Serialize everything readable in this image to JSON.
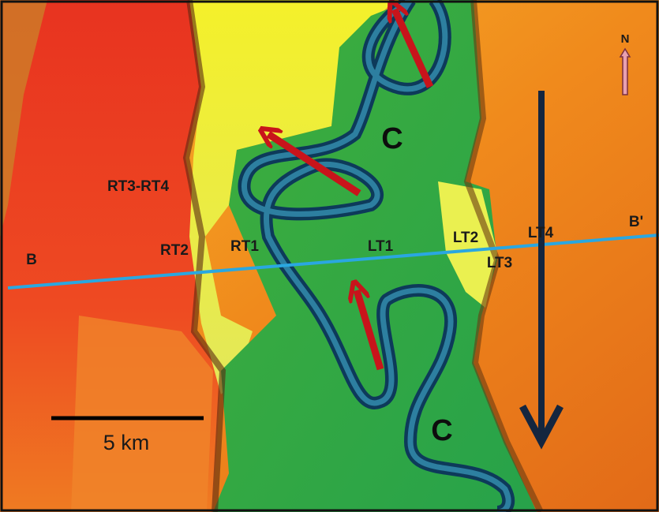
{
  "map": {
    "north": "N",
    "section": {
      "start": "B",
      "end": "B'"
    },
    "channels": [
      "C",
      "C"
    ],
    "terraces": [
      "RT3-RT4",
      "RT2",
      "RT1",
      "LT1",
      "LT2",
      "LT3",
      "LT4"
    ],
    "scale_bar": "5 km"
  }
}
